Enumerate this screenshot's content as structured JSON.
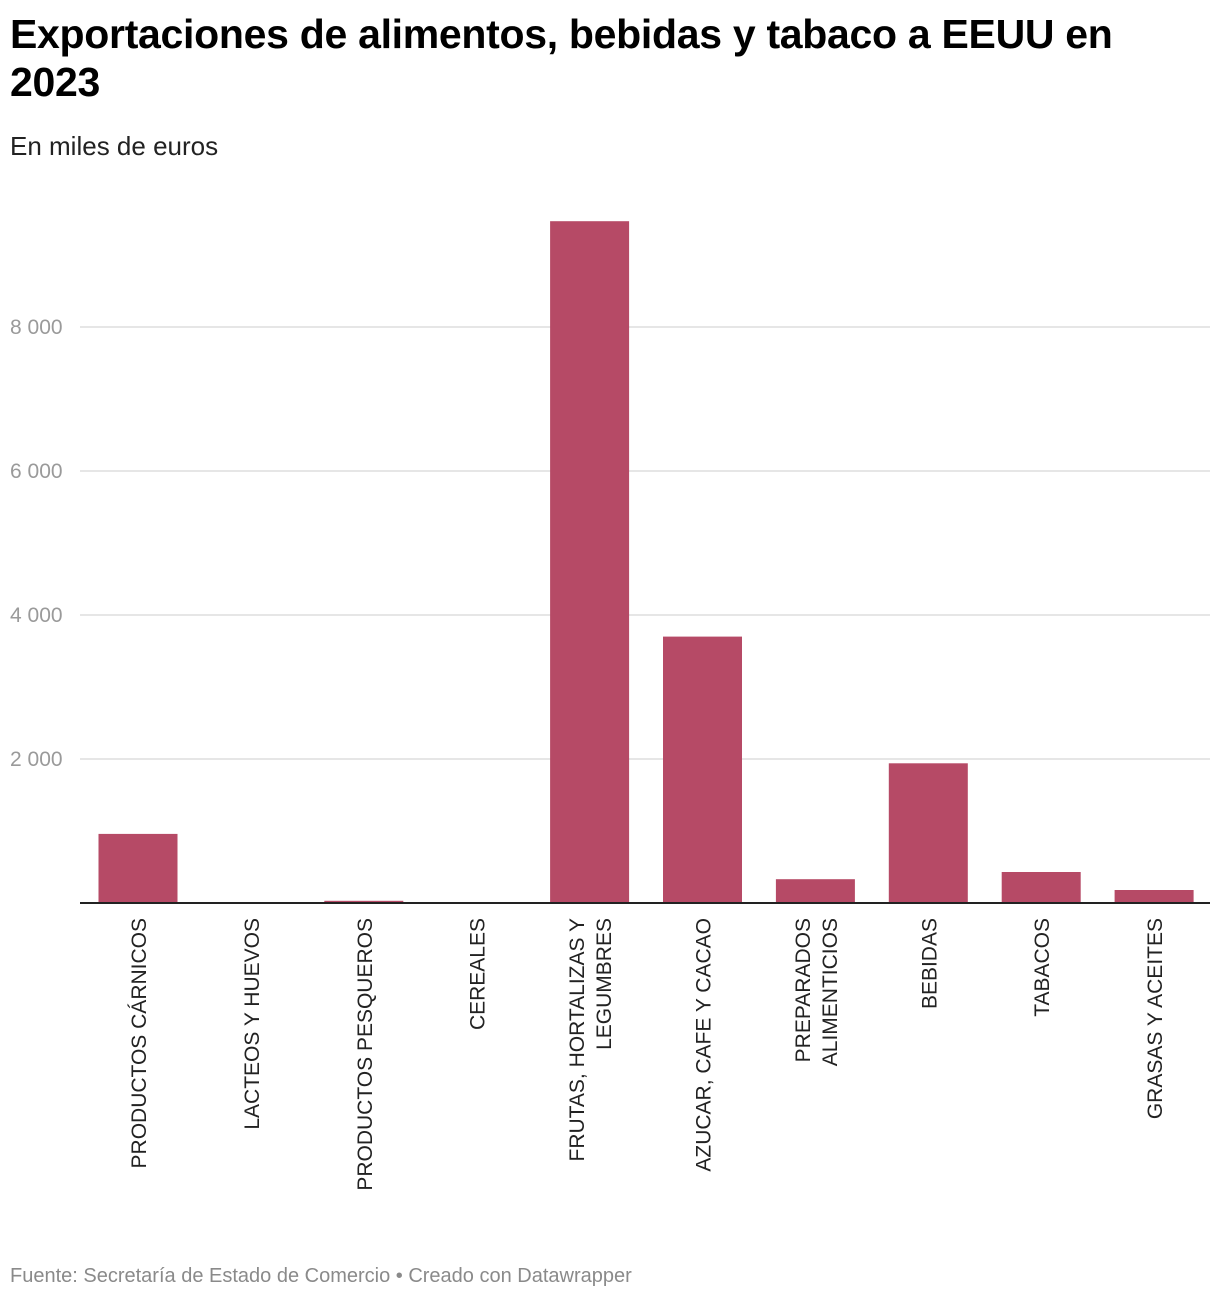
{
  "header": {
    "title": "Exportaciones de alimentos, bebidas y tabaco a EEUU en 2023",
    "subtitle": "En miles de euros"
  },
  "footer": {
    "source_text": "Fuente: Secretaría de Estado de Comercio • Creado con Datawrapper"
  },
  "colors": {
    "bar": "#b64a66",
    "grid": "#dddddd",
    "axis": "#222222",
    "tick_text": "#9a9a9a",
    "category_text": "#222222"
  },
  "chart_data": {
    "type": "bar",
    "title": "Exportaciones de alimentos, bebidas y tabaco a EEUU en 2023",
    "subtitle": "En miles de euros",
    "xlabel": "",
    "ylabel": "",
    "ylim": [
      0,
      9600
    ],
    "yticks": [
      2000,
      4000,
      6000,
      8000
    ],
    "ytick_labels": [
      "2 000",
      "4 000",
      "6 000",
      "8 000"
    ],
    "grid": true,
    "legend": "none",
    "categories": [
      [
        "PRODUCTOS CÁRNICOS"
      ],
      [
        "LACTEOS Y HUEVOS"
      ],
      [
        "PRODUCTOS PESQUEROS"
      ],
      [
        "CEREALES"
      ],
      [
        "FRUTAS, HORTALIZAS Y",
        "LEGUMBRES"
      ],
      [
        "AZUCAR, CAFE Y CACAO"
      ],
      [
        "PREPARADOS",
        "ALIMENTICIOS"
      ],
      [
        "BEBIDAS"
      ],
      [
        "TABACOS"
      ],
      [
        "GRASAS Y ACEITES"
      ]
    ],
    "values": [
      960,
      0,
      30,
      0,
      9470,
      3700,
      330,
      1940,
      430,
      180
    ]
  }
}
